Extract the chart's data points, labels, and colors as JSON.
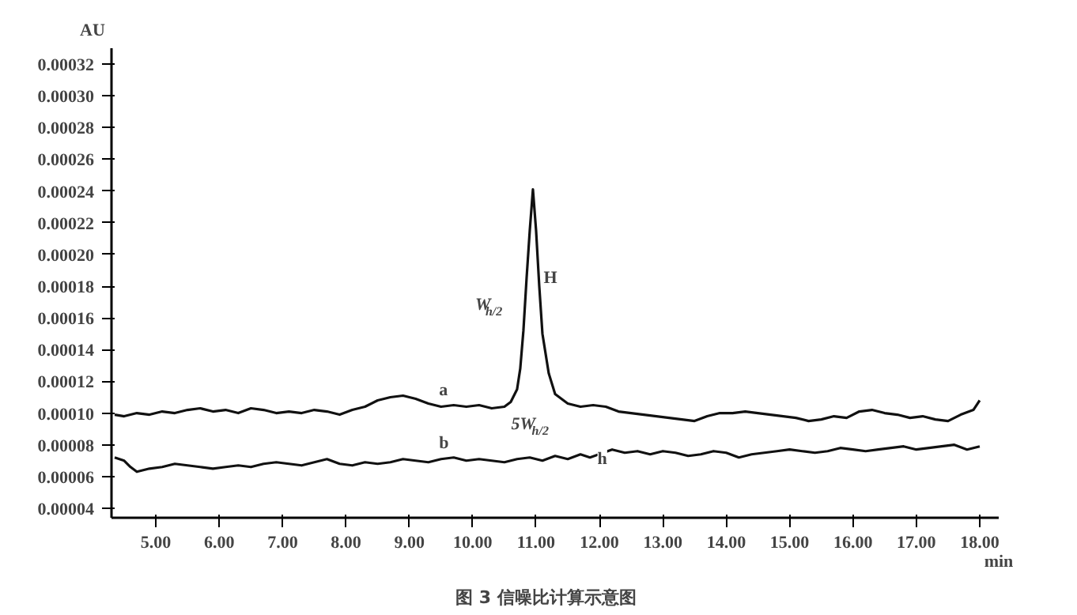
{
  "chart_data": {
    "type": "line",
    "title": "图 3    信噪比计算示意图",
    "xlabel": "min",
    "ylabel": "AU",
    "xlim": [
      4.3,
      18.3
    ],
    "ylim": [
      3.4e-05,
      0.00033
    ],
    "xticks": [
      {
        "value": 5,
        "label": "5.00"
      },
      {
        "value": 6,
        "label": "6.00"
      },
      {
        "value": 7,
        "label": "7.00"
      },
      {
        "value": 8,
        "label": "8.00"
      },
      {
        "value": 9,
        "label": "9.00"
      },
      {
        "value": 10,
        "label": "10.00"
      },
      {
        "value": 11,
        "label": "11.00"
      },
      {
        "value": 12,
        "label": "12.00"
      },
      {
        "value": 13,
        "label": "13.00"
      },
      {
        "value": 14,
        "label": "14.00"
      },
      {
        "value": 15,
        "label": "15.00"
      },
      {
        "value": 16,
        "label": "16.00"
      },
      {
        "value": 17,
        "label": "17.00"
      },
      {
        "value": 18,
        "label": "18.00"
      }
    ],
    "yticks": [
      {
        "value": 4e-05,
        "label": "0.00004"
      },
      {
        "value": 6e-05,
        "label": "0.00006"
      },
      {
        "value": 8e-05,
        "label": "0.00008"
      },
      {
        "value": 0.0001,
        "label": "0.00010"
      },
      {
        "value": 0.00012,
        "label": "0.00012"
      },
      {
        "value": 0.00014,
        "label": "0.00014"
      },
      {
        "value": 0.00016,
        "label": "0.00016"
      },
      {
        "value": 0.00018,
        "label": "0.00018"
      },
      {
        "value": 0.0002,
        "label": "0.00020"
      },
      {
        "value": 0.00022,
        "label": "0.00022"
      },
      {
        "value": 0.00024,
        "label": "0.00024"
      },
      {
        "value": 0.00026,
        "label": "0.00026"
      },
      {
        "value": 0.00028,
        "label": "0.00028"
      },
      {
        "value": 0.0003,
        "label": "0.00030"
      },
      {
        "value": 0.00032,
        "label": "0.00032"
      }
    ],
    "grid": false,
    "marker": "none",
    "line_style": "solid",
    "series": [
      {
        "color": "#111111",
        "x": [
          4.35,
          4.5,
          4.7,
          4.9,
          5.1,
          5.3,
          5.5,
          5.7,
          5.9,
          6.1,
          6.3,
          6.5,
          6.7,
          6.9,
          7.1,
          7.3,
          7.5,
          7.7,
          7.9,
          8.1,
          8.3,
          8.5,
          8.7,
          8.9,
          9.1,
          9.3,
          9.5,
          9.7,
          9.9,
          10.1,
          10.3,
          10.5,
          10.6,
          10.7,
          10.75,
          10.8,
          10.85,
          10.9,
          10.95,
          11.0,
          11.05,
          11.1,
          11.2,
          11.3,
          11.5,
          11.7,
          11.9,
          12.1,
          12.3,
          12.5,
          12.7,
          12.9,
          13.1,
          13.3,
          13.5,
          13.7,
          13.9,
          14.1,
          14.3,
          14.5,
          14.7,
          14.9,
          15.1,
          15.3,
          15.5,
          15.7,
          15.9,
          16.1,
          16.3,
          16.5,
          16.7,
          16.9,
          17.1,
          17.3,
          17.5,
          17.7,
          17.9,
          18.0
        ],
        "values": [
          9.9e-05,
          9.8e-05,
          0.0001,
          9.9e-05,
          0.000101,
          0.0001,
          0.000102,
          0.000103,
          0.000101,
          0.000102,
          0.0001,
          0.000103,
          0.000102,
          0.0001,
          0.000101,
          0.0001,
          0.000102,
          0.000101,
          9.9e-05,
          0.000102,
          0.000104,
          0.000108,
          0.00011,
          0.000111,
          0.000109,
          0.000106,
          0.000104,
          0.000105,
          0.000104,
          0.000105,
          0.000103,
          0.000104,
          0.000107,
          0.000115,
          0.000128,
          0.000152,
          0.000185,
          0.000215,
          0.000241,
          0.000215,
          0.00018,
          0.00015,
          0.000125,
          0.000112,
          0.000106,
          0.000104,
          0.000105,
          0.000104,
          0.000101,
          0.0001,
          9.9e-05,
          9.8e-05,
          9.7e-05,
          9.6e-05,
          9.5e-05,
          9.8e-05,
          0.0001,
          0.0001,
          0.000101,
          0.0001,
          9.9e-05,
          9.8e-05,
          9.7e-05,
          9.5e-05,
          9.6e-05,
          9.8e-05,
          9.7e-05,
          0.000101,
          0.000102,
          0.0001,
          9.9e-05,
          9.7e-05,
          9.8e-05,
          9.6e-05,
          9.5e-05,
          9.9e-05,
          0.000102,
          0.000108
        ]
      },
      {
        "color": "#111111",
        "x": [
          4.35,
          4.5,
          4.6,
          4.7,
          4.9,
          5.1,
          5.3,
          5.5,
          5.7,
          5.9,
          6.1,
          6.3,
          6.5,
          6.7,
          6.9,
          7.1,
          7.3,
          7.5,
          7.7,
          7.9,
          8.1,
          8.3,
          8.5,
          8.7,
          8.9,
          9.1,
          9.3,
          9.5,
          9.7,
          9.9,
          10.1,
          10.3,
          10.5,
          10.7,
          10.9,
          11.1,
          11.3,
          11.5,
          11.7,
          11.85,
          12.2,
          12.4,
          12.6,
          12.8,
          13.0,
          13.2,
          13.4,
          13.6,
          13.8,
          14.0,
          14.2,
          14.4,
          14.6,
          14.8,
          15.0,
          15.2,
          15.4,
          15.6,
          15.8,
          16.0,
          16.2,
          16.4,
          16.6,
          16.8,
          17.0,
          17.2,
          17.4,
          17.6,
          17.8,
          18.0
        ],
        "values": [
          7.2e-05,
          7e-05,
          6.6e-05,
          6.3e-05,
          6.5e-05,
          6.6e-05,
          6.8e-05,
          6.7e-05,
          6.6e-05,
          6.5e-05,
          6.6e-05,
          6.7e-05,
          6.6e-05,
          6.8e-05,
          6.9e-05,
          6.8e-05,
          6.7e-05,
          6.9e-05,
          7.1e-05,
          6.8e-05,
          6.7e-05,
          6.9e-05,
          6.8e-05,
          6.9e-05,
          7.1e-05,
          7e-05,
          6.9e-05,
          7.1e-05,
          7.2e-05,
          7e-05,
          7.1e-05,
          7e-05,
          6.9e-05,
          7.1e-05,
          7.2e-05,
          7e-05,
          7.3e-05,
          7.1e-05,
          7.4e-05,
          7.2e-05,
          7.7e-05,
          7.5e-05,
          7.6e-05,
          7.4e-05,
          7.6e-05,
          7.5e-05,
          7.3e-05,
          7.4e-05,
          7.6e-05,
          7.5e-05,
          7.2e-05,
          7.4e-05,
          7.5e-05,
          7.6e-05,
          7.7e-05,
          7.6e-05,
          7.5e-05,
          7.6e-05,
          7.8e-05,
          7.7e-05,
          7.6e-05,
          7.7e-05,
          7.8e-05,
          7.9e-05,
          7.7e-05,
          7.8e-05,
          7.9e-05,
          8e-05,
          7.7e-05,
          7.9e-05
        ]
      }
    ],
    "annotations": [
      "a",
      "b",
      "H",
      "W$_{h/2}$",
      "5W$_{h/2}$",
      "h"
    ]
  }
}
